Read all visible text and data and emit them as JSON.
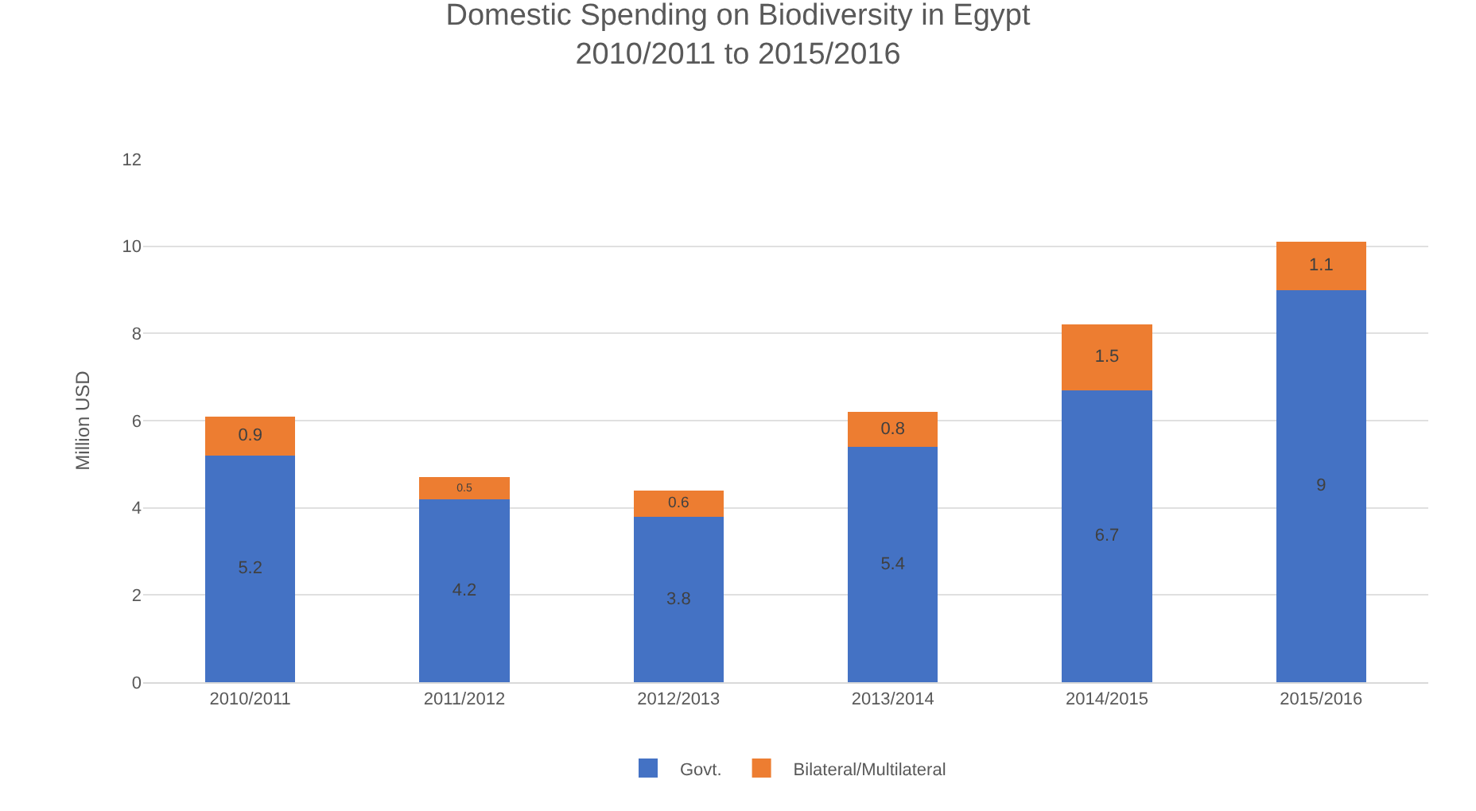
{
  "chart_data": {
    "type": "bar",
    "title": "Domestic Spending on Biodiversity in Egypt\n2010/2011 to 2015/2016",
    "ylabel": "Million USD",
    "categories": [
      "2010/2011",
      "2011/2012",
      "2012/2013",
      "2013/2014",
      "2014/2015",
      "2015/2016"
    ],
    "series": [
      {
        "name": "Govt.",
        "color": "#4472c4",
        "values": [
          5.2,
          4.2,
          3.8,
          5.4,
          6.7,
          9
        ]
      },
      {
        "name": "Bilateral/Multilateral",
        "color": "#ed7d31",
        "values": [
          0.9,
          0.5,
          0.6,
          0.8,
          1.5,
          1.1
        ]
      }
    ],
    "stacked": true,
    "data_labels": true,
    "ylim": [
      0,
      12
    ],
    "yticks": [
      0,
      2,
      4,
      6,
      8,
      10,
      12
    ],
    "grid": "y",
    "legend": "bottom"
  }
}
